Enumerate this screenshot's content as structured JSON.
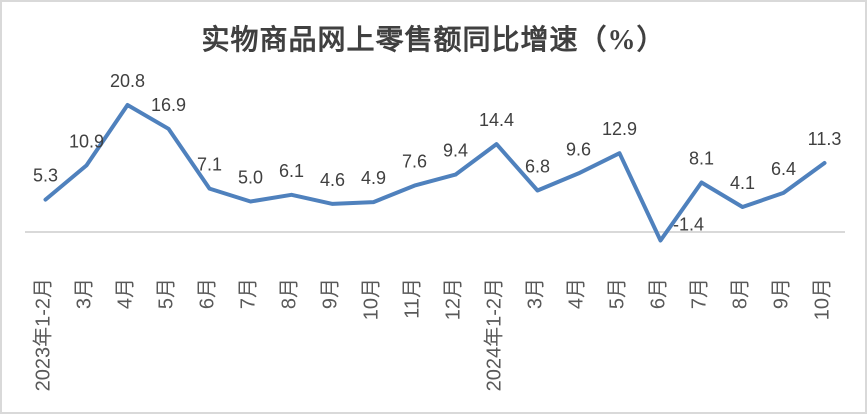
{
  "page": {
    "background_color": "#ffffff",
    "frame_border_color": "#d9d9d9"
  },
  "chart_data": {
    "type": "line",
    "title": "实物商品网上零售额同比增速（%）",
    "xlabel": "",
    "ylabel": "",
    "categories": [
      "2023年1-2月",
      "3月",
      "4月",
      "5月",
      "6月",
      "7月",
      "8月",
      "9月",
      "10月",
      "11月",
      "12月",
      "2024年1-2月",
      "3月",
      "4月",
      "5月",
      "6月",
      "7月",
      "8月",
      "9月",
      "10月"
    ],
    "values": [
      5.3,
      10.9,
      20.8,
      16.9,
      7.1,
      5.0,
      6.1,
      4.6,
      4.9,
      7.6,
      9.4,
      14.4,
      6.8,
      9.6,
      12.9,
      -1.4,
      8.1,
      4.1,
      6.4,
      11.3
    ],
    "data_labels": [
      "5.3",
      "10.9",
      "20.8",
      "16.9",
      "7.1",
      "5.0",
      "6.1",
      "4.6",
      "4.9",
      "7.6",
      "9.4",
      "14.4",
      "6.8",
      "9.6",
      "12.9",
      "-1.4",
      "8.1",
      "4.1",
      "6.4",
      "11.3"
    ],
    "ylim": [
      -4,
      24
    ],
    "legend": "none",
    "gridlines": "none",
    "x_axis": {
      "zero_line_shown": true,
      "tick_label_rotation_deg": -90
    },
    "colors": {
      "line": "#4f81bd",
      "data_label": "#404040",
      "axis_label": "#595959",
      "axis_line": "#d9d9d9",
      "title": "#404040"
    }
  }
}
